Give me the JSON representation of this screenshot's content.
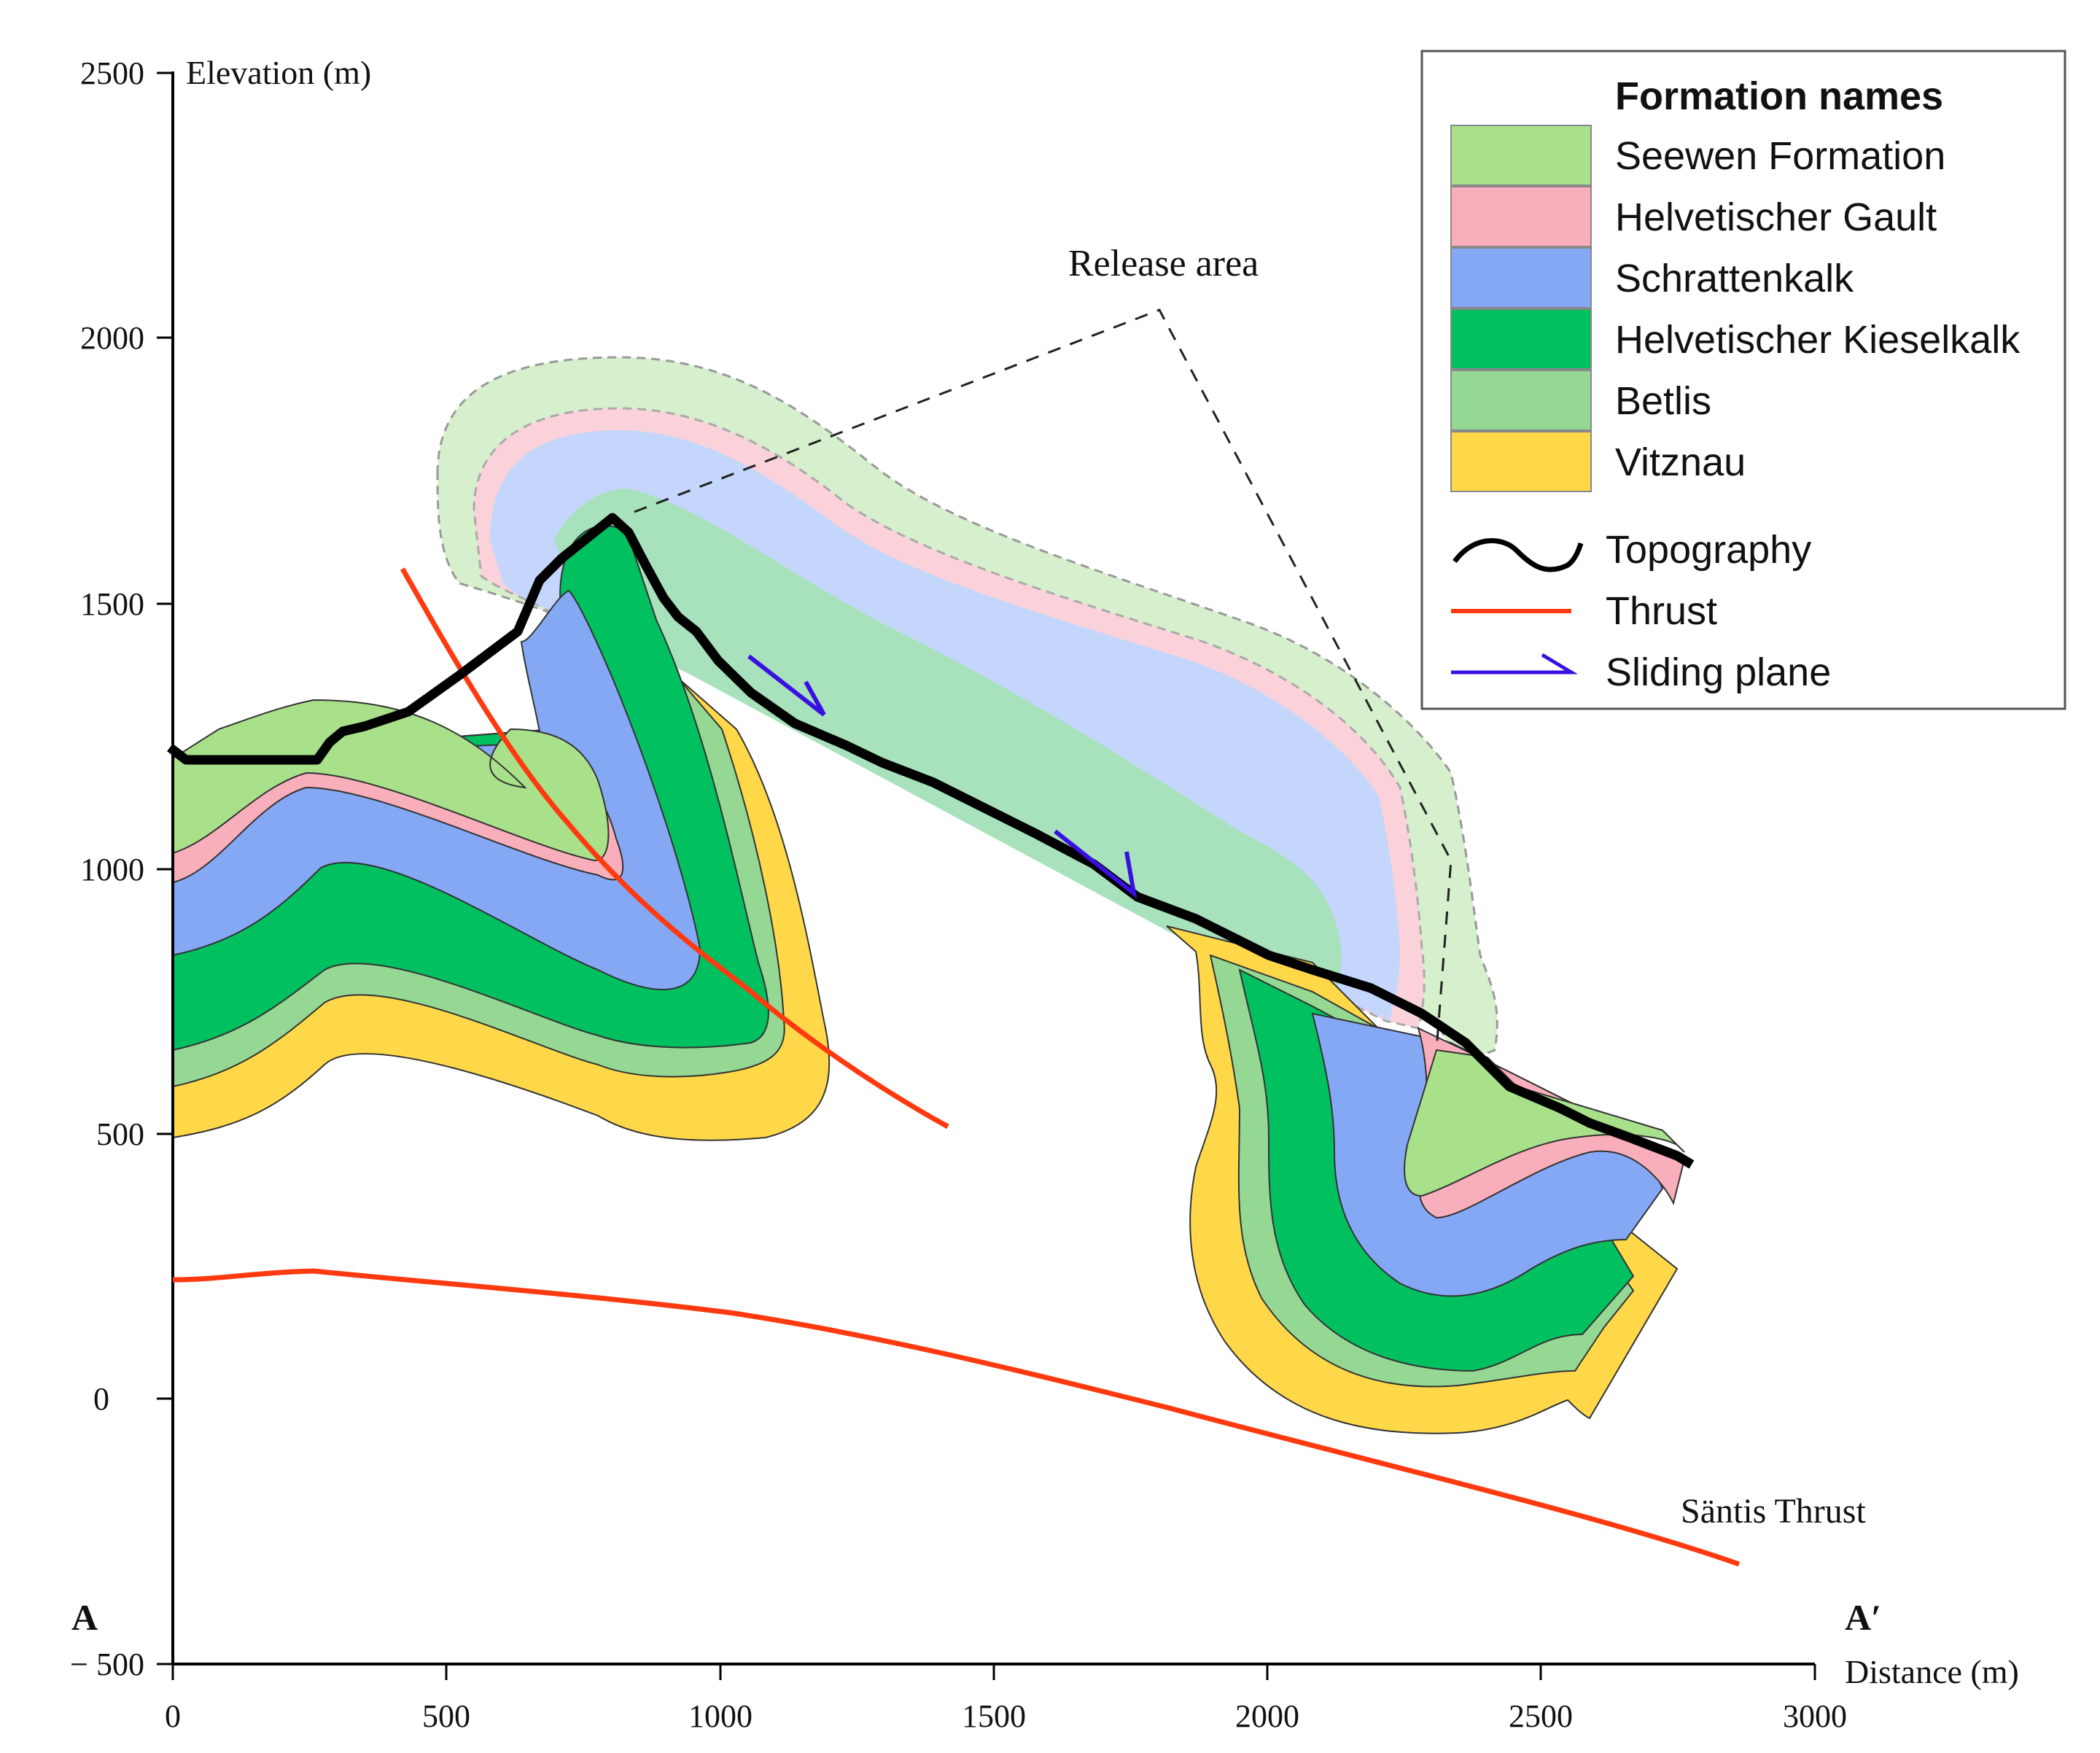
{
  "axes": {
    "y_label": "Elevation (m)",
    "x_label": "Distance (m)",
    "y_ticks": [
      "2500",
      "2000",
      "1500",
      "1000",
      "500",
      "0",
      "− 500"
    ],
    "x_ticks": [
      "0",
      "500",
      "1000",
      "1500",
      "2000",
      "2500",
      "3000"
    ]
  },
  "section": {
    "start": "A",
    "end": "A′"
  },
  "annotations": {
    "release_area": "Release area",
    "santis_thrust": "Säntis Thrust"
  },
  "legend": {
    "title": "Formation names",
    "formations": [
      {
        "name": "Seewen Formation",
        "color": "#a9e08a"
      },
      {
        "name": "Helvetischer Gault",
        "color": "#f9aebb"
      },
      {
        "name": "Schrattenkalk",
        "color": "#85a8f5"
      },
      {
        "name": "Helvetischer Kieselkalk",
        "color": "#00c060"
      },
      {
        "name": "Betlis",
        "color": "#94d894"
      },
      {
        "name": "Vitznau",
        "color": "#ffd84a"
      }
    ],
    "lines": [
      {
        "name": "Topography",
        "color": "#000000"
      },
      {
        "name": "Thrust",
        "color": "#ff3a10"
      },
      {
        "name": "Sliding plane",
        "color": "#3a10e0"
      }
    ]
  }
}
